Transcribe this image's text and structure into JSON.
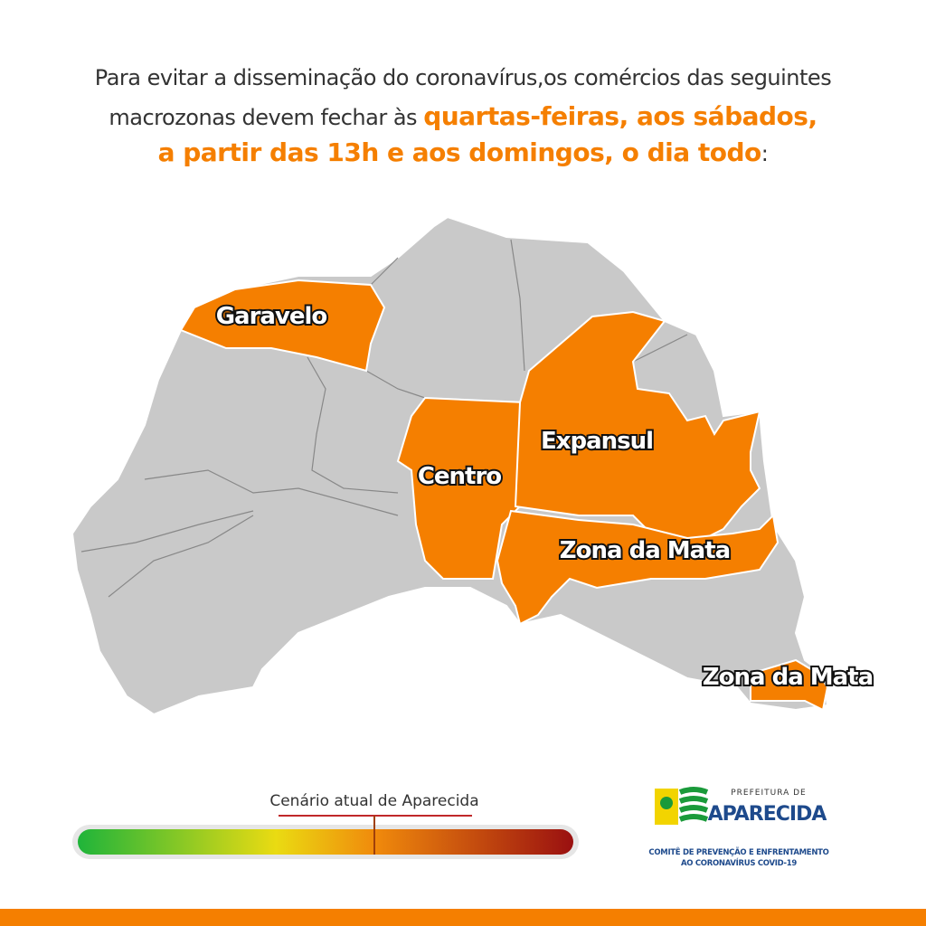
{
  "header": {
    "line1": "Para evitar a disseminação do coronavírus,os comércios das seguintes",
    "line2": "macrozonas devem fechar às",
    "line2_highlight": "quartas-feiras, aos sábados,",
    "line3_highlight": "a partir das 13h e aos domingos, o dia todo",
    "line3_end": ":"
  },
  "map": {
    "zones": [
      {
        "label": "Garavelo"
      },
      {
        "label": "Centro"
      },
      {
        "label": "Expansul"
      },
      {
        "label": "Zona da Mata"
      },
      {
        "label": "Zona da Mata"
      }
    ]
  },
  "scale": {
    "label": "Cenário atual de Aparecida"
  },
  "logo": {
    "prefix": "PREFEITURA DE",
    "name": "APARECIDA",
    "committee": [
      "COMITÊ DE PREVENÇÃO E ENFRENTAMENTO",
      "AO CORONAVÍRUS COVID-19"
    ]
  }
}
